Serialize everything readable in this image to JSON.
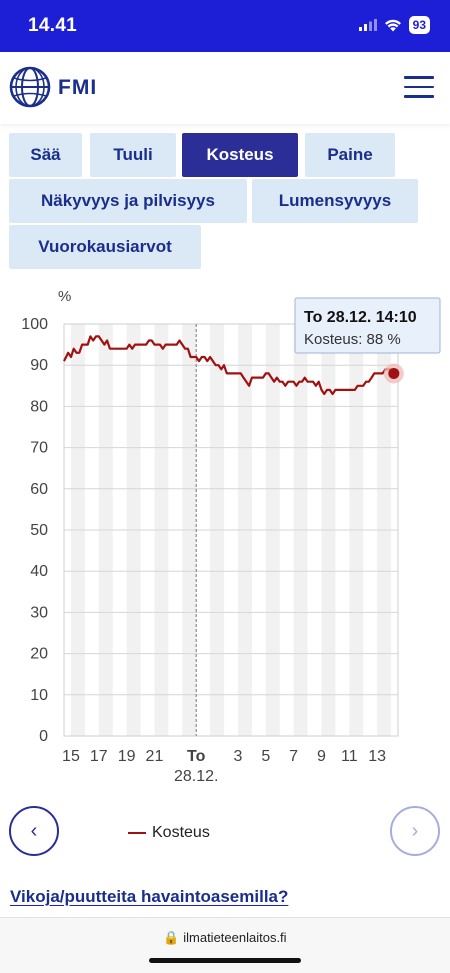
{
  "status": {
    "time": "14.41",
    "battery": "93"
  },
  "header": {
    "logo_text": "FMI"
  },
  "tabs": [
    {
      "label": "Sää",
      "active": false
    },
    {
      "label": "Tuuli",
      "active": false
    },
    {
      "label": "Kosteus",
      "active": true
    },
    {
      "label": "Paine",
      "active": false
    },
    {
      "label": "Näkyvyys ja pilvisyys",
      "active": false
    },
    {
      "label": "Lumensyvyys",
      "active": false
    },
    {
      "label": "Vuorokausiarvot",
      "active": false
    }
  ],
  "chart_data": {
    "type": "line",
    "unit": "%",
    "ylim": [
      0,
      100
    ],
    "y_ticks": [
      0,
      10,
      20,
      30,
      40,
      50,
      60,
      70,
      80,
      90,
      100
    ],
    "x_ticks": [
      {
        "h": 15,
        "label": "15"
      },
      {
        "h": 17,
        "label": "17"
      },
      {
        "h": 19,
        "label": "19"
      },
      {
        "h": 21,
        "label": "21"
      },
      {
        "h": 24,
        "label": "To",
        "sublabel": "28.12."
      },
      {
        "h": 27,
        "label": "3"
      },
      {
        "h": 29,
        "label": "5"
      },
      {
        "h": 31,
        "label": "7"
      },
      {
        "h": 33,
        "label": "9"
      },
      {
        "h": 35,
        "label": "11"
      },
      {
        "h": 37,
        "label": "13"
      }
    ],
    "x_range_hours": [
      14.5,
      38.5
    ],
    "day_divider_hour": 24,
    "grid": true,
    "series": [
      {
        "name": "Kosteus",
        "color": "#a01212",
        "points": [
          [
            14.5,
            91
          ],
          [
            14.8,
            93
          ],
          [
            15.0,
            92
          ],
          [
            15.2,
            94
          ],
          [
            15.4,
            93
          ],
          [
            15.6,
            93
          ],
          [
            15.8,
            95
          ],
          [
            16.0,
            95
          ],
          [
            16.2,
            95
          ],
          [
            16.4,
            97
          ],
          [
            16.6,
            96
          ],
          [
            16.8,
            97
          ],
          [
            17.0,
            97
          ],
          [
            17.2,
            96
          ],
          [
            17.4,
            95
          ],
          [
            17.6,
            96
          ],
          [
            17.8,
            94
          ],
          [
            18.0,
            94
          ],
          [
            18.5,
            94
          ],
          [
            19.0,
            94
          ],
          [
            19.2,
            95
          ],
          [
            19.4,
            94
          ],
          [
            19.6,
            95
          ],
          [
            20.0,
            95
          ],
          [
            20.4,
            95
          ],
          [
            20.6,
            96
          ],
          [
            20.8,
            96
          ],
          [
            21.0,
            95
          ],
          [
            21.2,
            95
          ],
          [
            21.4,
            95
          ],
          [
            21.6,
            94
          ],
          [
            21.8,
            95
          ],
          [
            22.0,
            95
          ],
          [
            22.2,
            95
          ],
          [
            22.4,
            95
          ],
          [
            22.6,
            95
          ],
          [
            22.8,
            96
          ],
          [
            23.0,
            95
          ],
          [
            23.2,
            94
          ],
          [
            23.4,
            94
          ],
          [
            23.6,
            92
          ],
          [
            23.8,
            92
          ],
          [
            24.0,
            92
          ],
          [
            24.2,
            91
          ],
          [
            24.4,
            92
          ],
          [
            24.6,
            92
          ],
          [
            24.8,
            91
          ],
          [
            25.0,
            92
          ],
          [
            25.2,
            91
          ],
          [
            25.4,
            90
          ],
          [
            25.6,
            90
          ],
          [
            25.8,
            89
          ],
          [
            26.0,
            90
          ],
          [
            26.2,
            88
          ],
          [
            26.4,
            88
          ],
          [
            26.6,
            88
          ],
          [
            26.8,
            88
          ],
          [
            27.0,
            88
          ],
          [
            27.2,
            88
          ],
          [
            27.4,
            87
          ],
          [
            27.6,
            86
          ],
          [
            27.8,
            85
          ],
          [
            28.0,
            87
          ],
          [
            28.2,
            87
          ],
          [
            28.4,
            87
          ],
          [
            28.6,
            87
          ],
          [
            28.8,
            87
          ],
          [
            29.0,
            88
          ],
          [
            29.2,
            88
          ],
          [
            29.4,
            87
          ],
          [
            29.6,
            86
          ],
          [
            29.8,
            87
          ],
          [
            30.0,
            86
          ],
          [
            30.2,
            86
          ],
          [
            30.4,
            85
          ],
          [
            30.6,
            86
          ],
          [
            30.8,
            86
          ],
          [
            31.0,
            86
          ],
          [
            31.2,
            85
          ],
          [
            31.4,
            86
          ],
          [
            31.6,
            86
          ],
          [
            31.8,
            87
          ],
          [
            32.0,
            86
          ],
          [
            32.2,
            86
          ],
          [
            32.4,
            86
          ],
          [
            32.6,
            85
          ],
          [
            32.8,
            86
          ],
          [
            33.0,
            84
          ],
          [
            33.2,
            83
          ],
          [
            33.4,
            84
          ],
          [
            33.6,
            84
          ],
          [
            33.8,
            83
          ],
          [
            34.0,
            84
          ],
          [
            34.2,
            84
          ],
          [
            34.6,
            84
          ],
          [
            35.0,
            84
          ],
          [
            35.4,
            84
          ],
          [
            35.6,
            85
          ],
          [
            35.8,
            85
          ],
          [
            36.0,
            85
          ],
          [
            36.2,
            86
          ],
          [
            36.4,
            86
          ],
          [
            36.6,
            87
          ],
          [
            36.8,
            88
          ],
          [
            37.0,
            88
          ],
          [
            37.2,
            88
          ],
          [
            37.4,
            88
          ],
          [
            37.6,
            89
          ],
          [
            37.8,
            89
          ],
          [
            38.0,
            89
          ],
          [
            38.1,
            88
          ],
          [
            38.2,
            88
          ]
        ]
      }
    ],
    "tooltip": {
      "title": "To 28.12. 14:10",
      "value_text": "Kosteus: 88 %",
      "point": [
        38.2,
        88
      ]
    },
    "legend": {
      "label": "Kosteus",
      "placement": "bottom"
    }
  },
  "nav": {
    "prev_symbol": "‹",
    "next_symbol": "›"
  },
  "footer": {
    "report_link": "Vikoja/puutteita havaintoasemilla?",
    "url": "ilmatieteenlaitos.fi"
  }
}
